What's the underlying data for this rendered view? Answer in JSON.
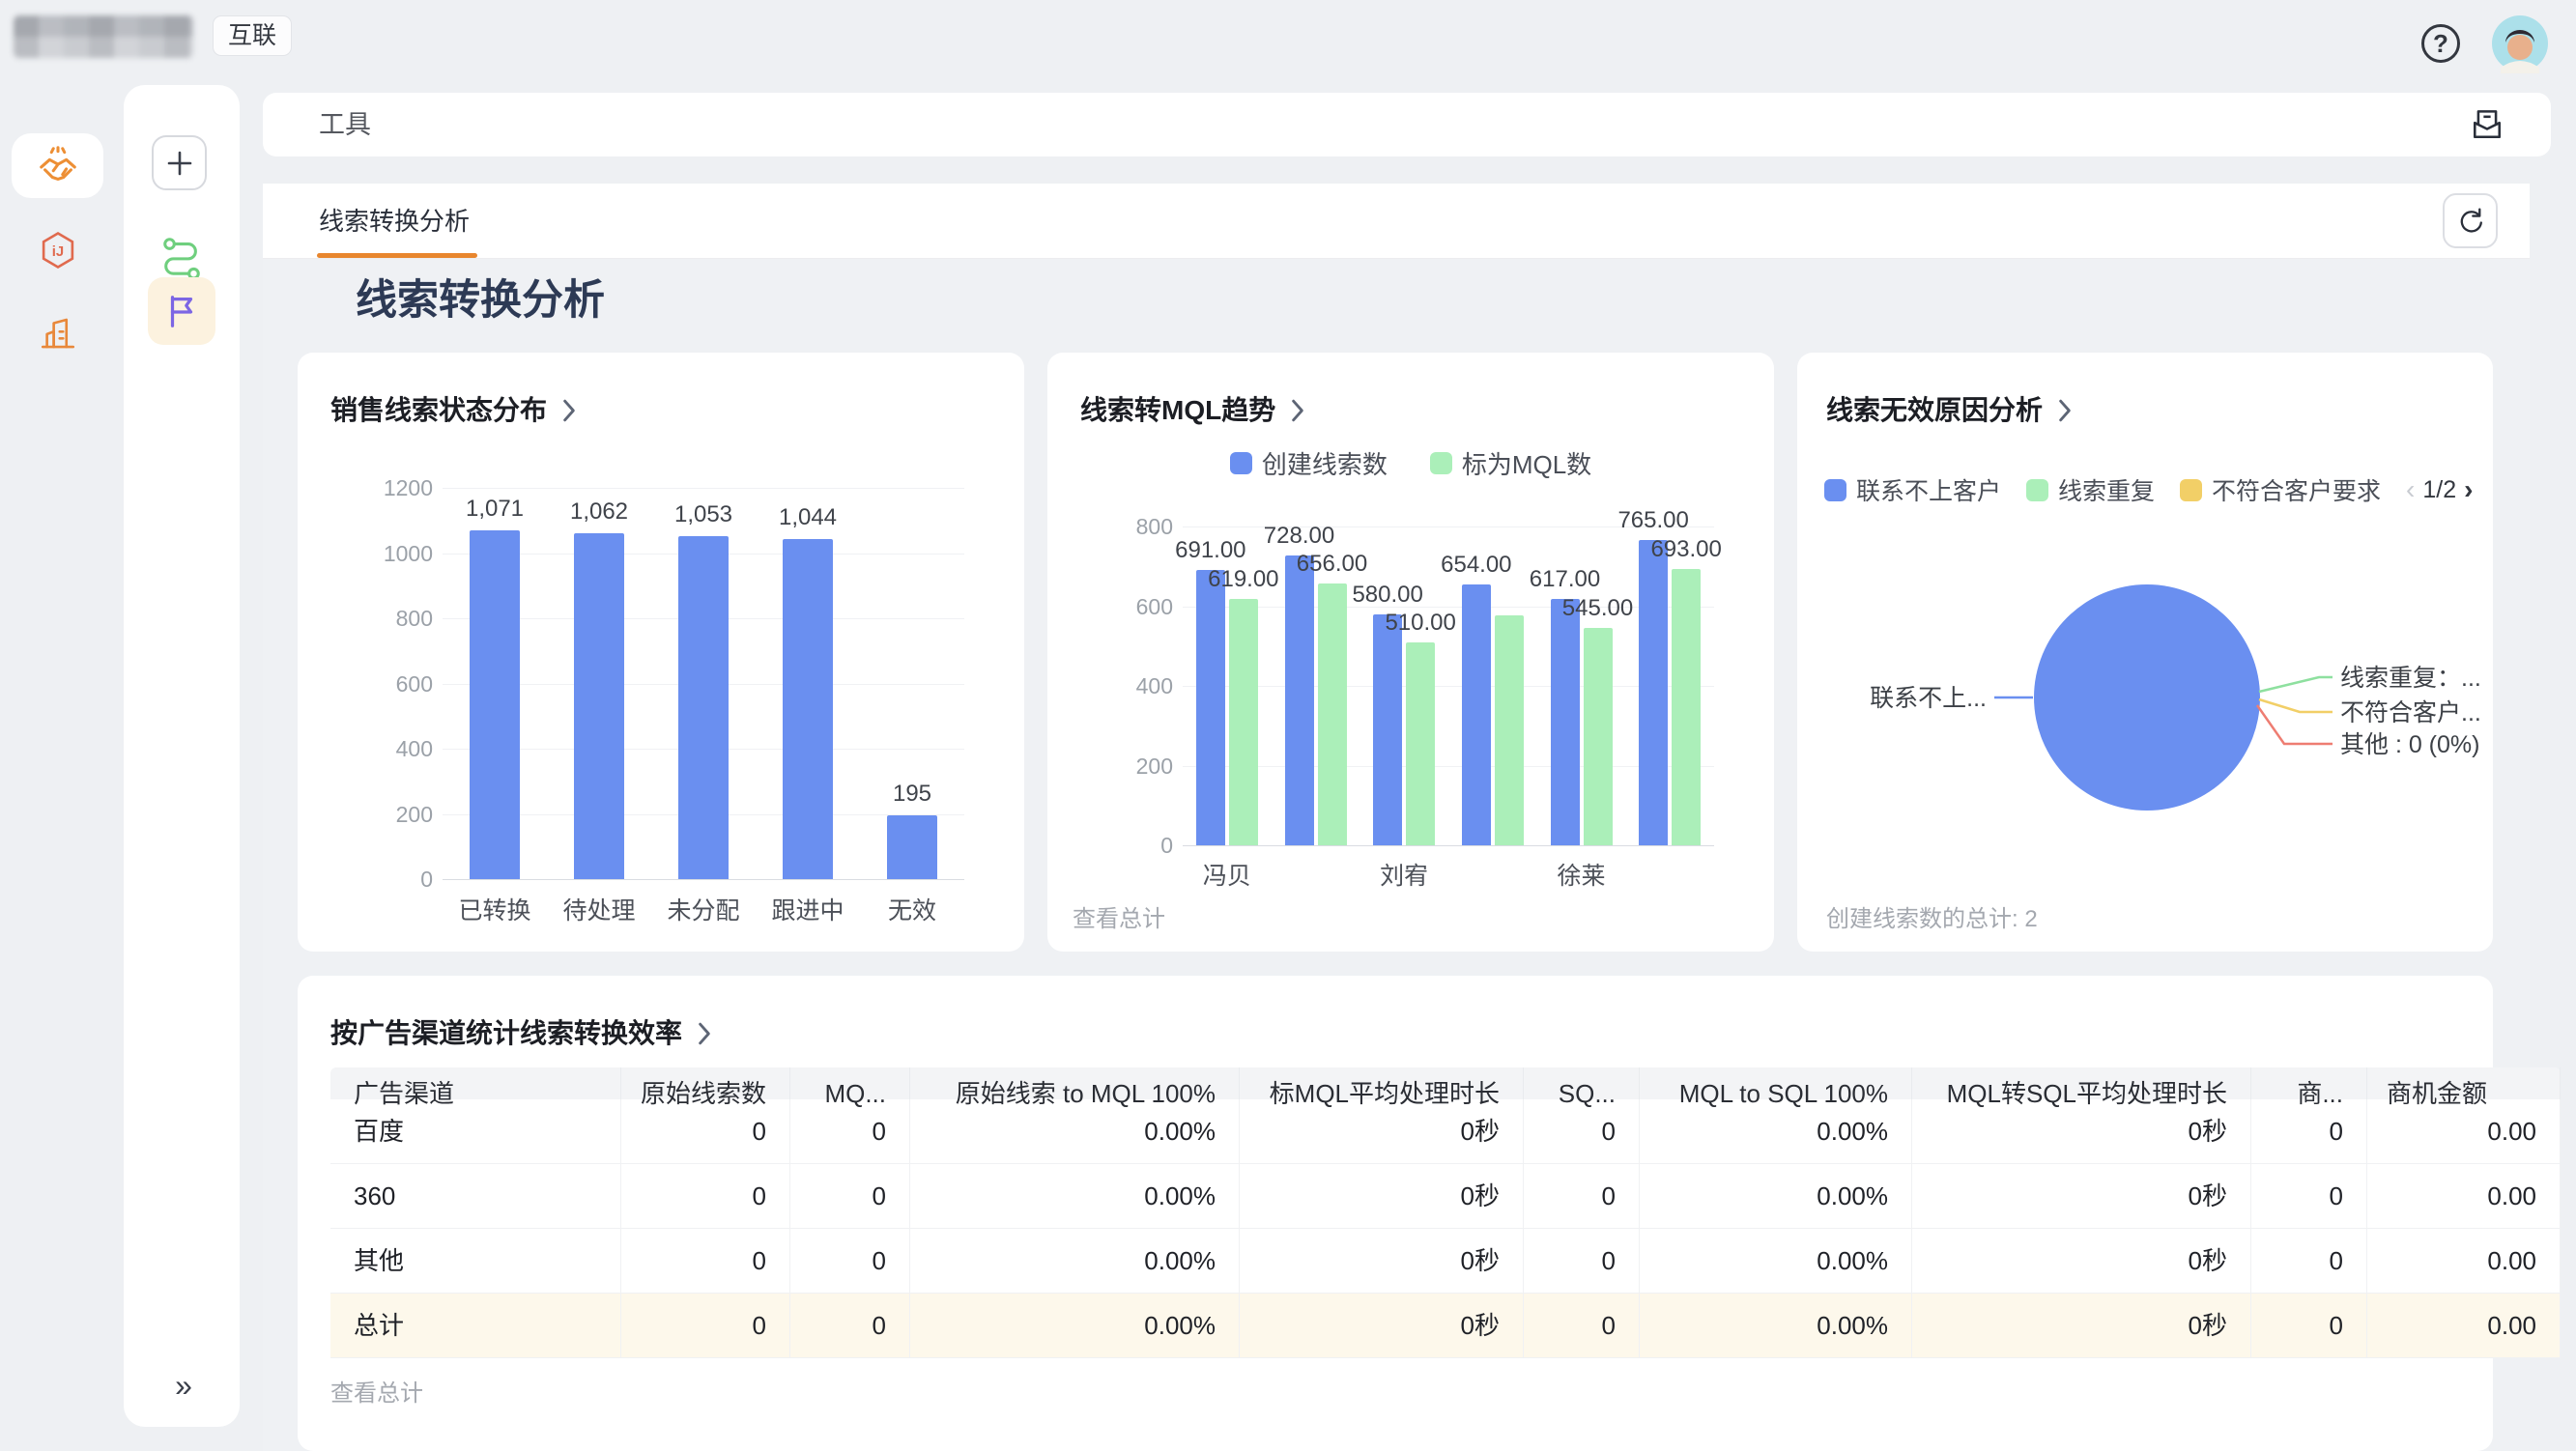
{
  "topbar": {
    "badge": "互联"
  },
  "sidebar": {
    "rail_icons": [
      "handshake-icon",
      "hexagon-ij-icon",
      "building-chart-icon"
    ],
    "panel_icons": [
      "add-icon",
      "route-icon",
      "flag-icon"
    ],
    "collapse_glyph": "»"
  },
  "toolbar": {
    "title": "工具"
  },
  "tab": {
    "label": "线索转换分析"
  },
  "page": {
    "title": "线索转换分析"
  },
  "charts": {
    "status": {
      "title": "销售线索状态分布"
    },
    "mql": {
      "title": "线索转MQL趋势",
      "footer_link": "查看总计"
    },
    "invalid": {
      "title": "线索无效原因分析",
      "legend": [
        "联系不上客户",
        "线索重复",
        "不符合客户要求"
      ],
      "pagination": "1/2",
      "callouts": {
        "left": "联系不上...",
        "right": [
          "线索重复：...",
          "不符合客户...",
          "其他 : 0 (0%)"
        ]
      },
      "footer": "创建线索数的总计: 2"
    }
  },
  "chart_data": [
    {
      "type": "bar",
      "title": "销售线索状态分布",
      "categories": [
        "已转换",
        "待处理",
        "未分配",
        "跟进中",
        "无效"
      ],
      "values": [
        1071,
        1062,
        1053,
        1044,
        195
      ],
      "value_labels": [
        "1,071",
        "1,062",
        "1,053",
        "1,044",
        "195"
      ],
      "xlabel": "",
      "ylabel": "",
      "ylim": [
        0,
        1200
      ],
      "ytick_step": 200,
      "grid": true,
      "bar_color": "#6A8FF0"
    },
    {
      "type": "bar",
      "title": "线索转MQL趋势",
      "categories": [
        "冯贝",
        "",
        "刘宥",
        "",
        "徐莱",
        ""
      ],
      "series": [
        {
          "name": "创建线索数",
          "color": "#6A8FF0",
          "values": [
            691,
            728,
            580,
            654,
            617,
            765
          ],
          "value_labels": [
            "691.00",
            "728.00",
            "580.00",
            "654.00",
            "617.00",
            "765.00"
          ]
        },
        {
          "name": "标为MQL数",
          "color": "#ABEFB9",
          "values": [
            619,
            656,
            510,
            578,
            545,
            693
          ],
          "value_labels": [
            "619.00",
            "656.00",
            "510.00",
            "",
            "545.00",
            "693.00"
          ]
        }
      ],
      "xlabel": "",
      "ylabel": "",
      "ylim": [
        0,
        800
      ],
      "ytick_step": 200,
      "grid": true,
      "legend_position": "top"
    },
    {
      "type": "pie",
      "title": "线索无效原因分析",
      "legend": [
        "联系不上客户",
        "线索重复",
        "不符合客户要求"
      ],
      "legend_page": "1/2",
      "slices": [
        {
          "name": "联系不上客户",
          "callout": "联系不上...",
          "color": "#6A8FF0",
          "share_est": 0.997
        },
        {
          "name": "线索重复",
          "callout": "线索重复：...",
          "color": "#8EE09F",
          "share_est": 0.0015
        },
        {
          "name": "不符合客户要求",
          "callout": "不符合客户...",
          "color": "#F2CF67",
          "share_est": 0.0015
        },
        {
          "name": "其他",
          "callout": "其他 : 0 (0%)",
          "value": 0,
          "share_est": 0,
          "color": "#EE7D72"
        }
      ],
      "footer": "创建线索数的总计: 2"
    }
  ],
  "table": {
    "title": "按广告渠道统计线索转换效率",
    "columns": [
      "广告渠道",
      "原始线索数",
      "MQ...",
      "原始线索 to MQL 100%",
      "标MQL平均处理时长",
      "SQ...",
      "MQL to SQL 100%",
      "MQL转SQL平均处理时长",
      "商...",
      "商机金额"
    ],
    "rows": [
      {
        "channel": "百度",
        "values": [
          "0",
          "0",
          "0.00%",
          "0秒",
          "0",
          "0.00%",
          "0秒",
          "0",
          "0.00"
        ],
        "total": false
      },
      {
        "channel": "360",
        "values": [
          "0",
          "0",
          "0.00%",
          "0秒",
          "0",
          "0.00%",
          "0秒",
          "0",
          "0.00"
        ],
        "total": false
      },
      {
        "channel": "其他",
        "values": [
          "0",
          "0",
          "0.00%",
          "0秒",
          "0",
          "0.00%",
          "0秒",
          "0",
          "0.00"
        ],
        "total": false
      },
      {
        "channel": "总计",
        "values": [
          "0",
          "0",
          "0.00%",
          "0秒",
          "0",
          "0.00%",
          "0秒",
          "0",
          "0.00"
        ],
        "total": true
      }
    ],
    "footer_link": "查看总计"
  },
  "colors": {
    "accent_orange": "#E8862E",
    "bar_blue": "#6A8FF0",
    "bar_green": "#ABEFB9",
    "legend_yellow": "#F2CF67",
    "callout_red": "#EE7D72",
    "flag_purple": "#7C66E4",
    "route_green": "#6FCF7E",
    "icon_orange": "#ED8F35",
    "hexagon_red": "#E06A4E",
    "total_row_bg": "#FDF8EB"
  }
}
